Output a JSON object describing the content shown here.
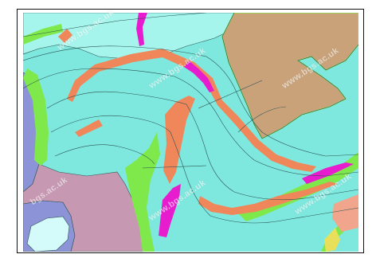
{
  "map": {
    "watermark_text": "www.bgs.ac.uk",
    "watermark_fragment_left": "bgs.ac.uk",
    "colors": {
      "aqua": "#7fe8de",
      "pale_aqua": "#a6f5ec",
      "orange": "#f0875a",
      "magenta": "#e81ccf",
      "green": "#7fe84a",
      "tan": "#c9a27a",
      "lavender": "#8c93d6",
      "mauve": "#c798b2",
      "pale_cyan": "#d4fbfa",
      "salmon": "#f0a58c",
      "yellow": "#e8e05a",
      "boundary": "#2b5454"
    }
  }
}
